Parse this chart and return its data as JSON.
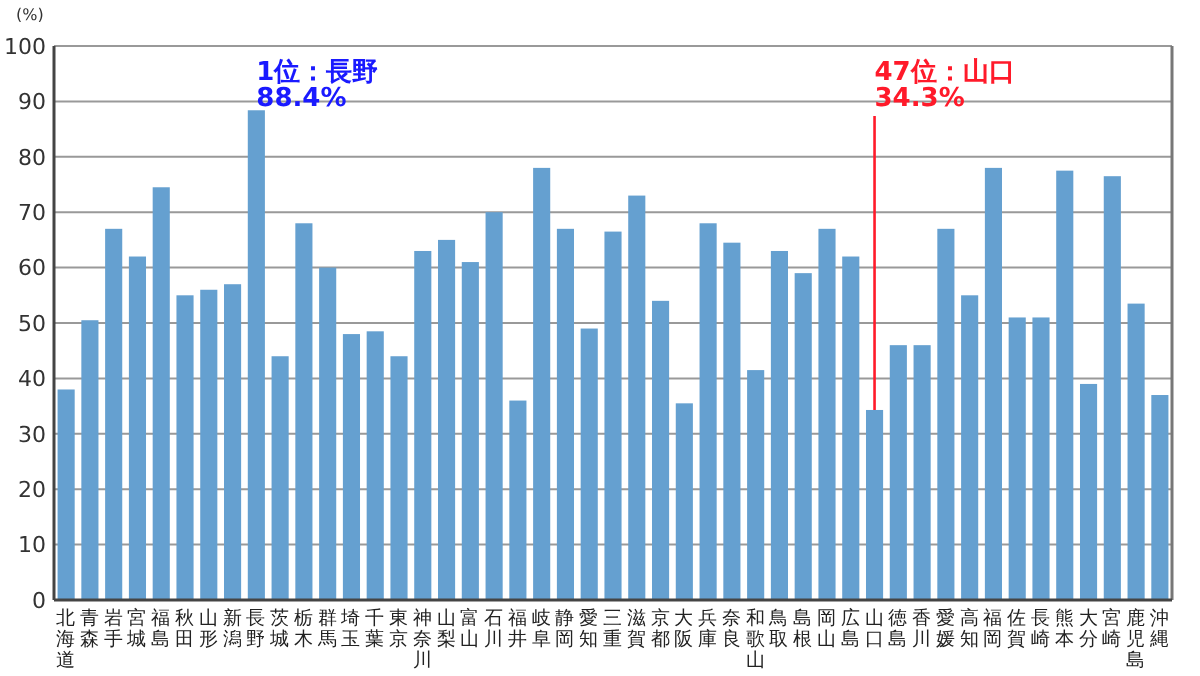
{
  "chart_data": {
    "type": "bar",
    "ylabel": "(%)",
    "categories": [
      "北海道",
      "青森",
      "岩手",
      "宮城",
      "福島",
      "秋田",
      "山形",
      "新潟",
      "長野",
      "茨城",
      "栃木",
      "群馬",
      "埼玉",
      "千葉",
      "東京",
      "神奈川",
      "山梨",
      "富山",
      "石川",
      "福井",
      "岐阜",
      "静岡",
      "愛知",
      "三重",
      "滋賀",
      "京都",
      "大阪",
      "兵庫",
      "奈良",
      "和歌山",
      "鳥取",
      "島根",
      "岡山",
      "広島",
      "山口",
      "徳島",
      "香川",
      "愛媛",
      "高知",
      "福岡",
      "佐賀",
      "長崎",
      "熊本",
      "大分",
      "宮崎",
      "鹿児島",
      "沖縄"
    ],
    "values": [
      38,
      50.5,
      67,
      62,
      74.5,
      55,
      56,
      57,
      88.4,
      44,
      68,
      60,
      48,
      48.5,
      44,
      63,
      65,
      61,
      70,
      36,
      78,
      67,
      49,
      66.5,
      73,
      54,
      35.5,
      68,
      64.5,
      41.5,
      63,
      59,
      67,
      62,
      34.3,
      46,
      46,
      67,
      55,
      78,
      51,
      51,
      77.5,
      39,
      76.5,
      53.5,
      37
    ],
    "color": "#65a0d0",
    "ylim": [
      0,
      100
    ],
    "yticks": [
      0,
      10,
      20,
      30,
      40,
      50,
      60,
      70,
      80,
      90,
      100
    ],
    "grid": "y",
    "annotations": [
      {
        "text": "1位：長野\n88.4%",
        "x": "長野",
        "y": 88.4
      },
      {
        "text": "47位：山口\n34.3%",
        "x": "山口",
        "y": 34.3
      }
    ]
  }
}
